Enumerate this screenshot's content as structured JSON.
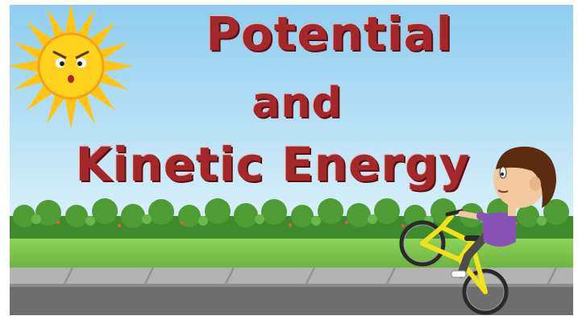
{
  "title": {
    "line1": "Potential",
    "line2": "and",
    "line3": "Kinetic Energy"
  },
  "colors": {
    "sky_top": "#8fcdf0",
    "sky_bottom": "#d9f0fb",
    "title": "#a4282a",
    "grass": "#7cc44a",
    "hedge": "#3f8a2c",
    "sidewalk": "#a9a9a9",
    "road": "#6e6e6e",
    "sun": "#ffd21e",
    "bike": "#f2e21c",
    "shirt": "#8a52b5"
  },
  "icons": [
    "sun-icon",
    "boy-on-bicycle-icon"
  ]
}
